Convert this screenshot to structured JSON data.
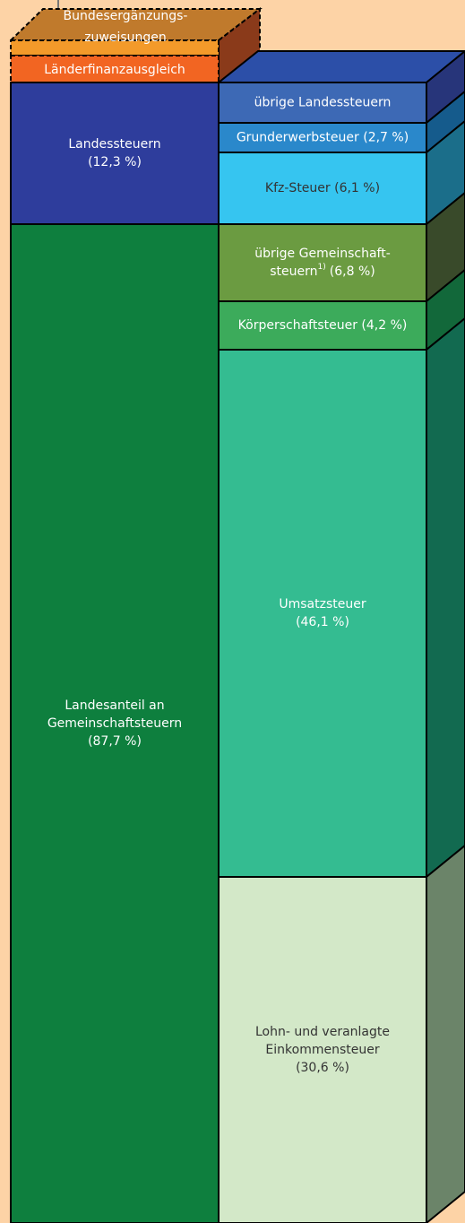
{
  "top": {
    "bundes": [
      "Bundesergänzungs-",
      "zuweisungen"
    ],
    "laenderfinanz": "Länderfinanzausgleich"
  },
  "left": [
    {
      "lines": [
        "Landessteuern",
        "(12,3 %)"
      ]
    },
    {
      "lines": [
        "Landesanteil an",
        "Gemeinschaftsteuern",
        "(87,7 %)"
      ]
    }
  ],
  "right": [
    {
      "lines": [
        "übrige Landessteuern"
      ]
    },
    {
      "lines": [
        "Grunderwerbsteuer (2,7 %)"
      ]
    },
    {
      "lines": [
        "Kfz-Steuer (6,1 %)"
      ]
    },
    {
      "lines": [
        "übrige Gemeinschaft-",
        "steuern"
      ],
      "footnote": "1)",
      "rest": "(6,8 %)"
    },
    {
      "lines": [
        "Körperschaftsteuer (4,2 %)"
      ]
    },
    {
      "lines": [
        "Umsatzsteuer",
        "(46,1 %)"
      ]
    },
    {
      "lines": [
        "Lohn- und veranlagte",
        "Einkommensteuer",
        "(30,6 %)"
      ]
    }
  ]
}
